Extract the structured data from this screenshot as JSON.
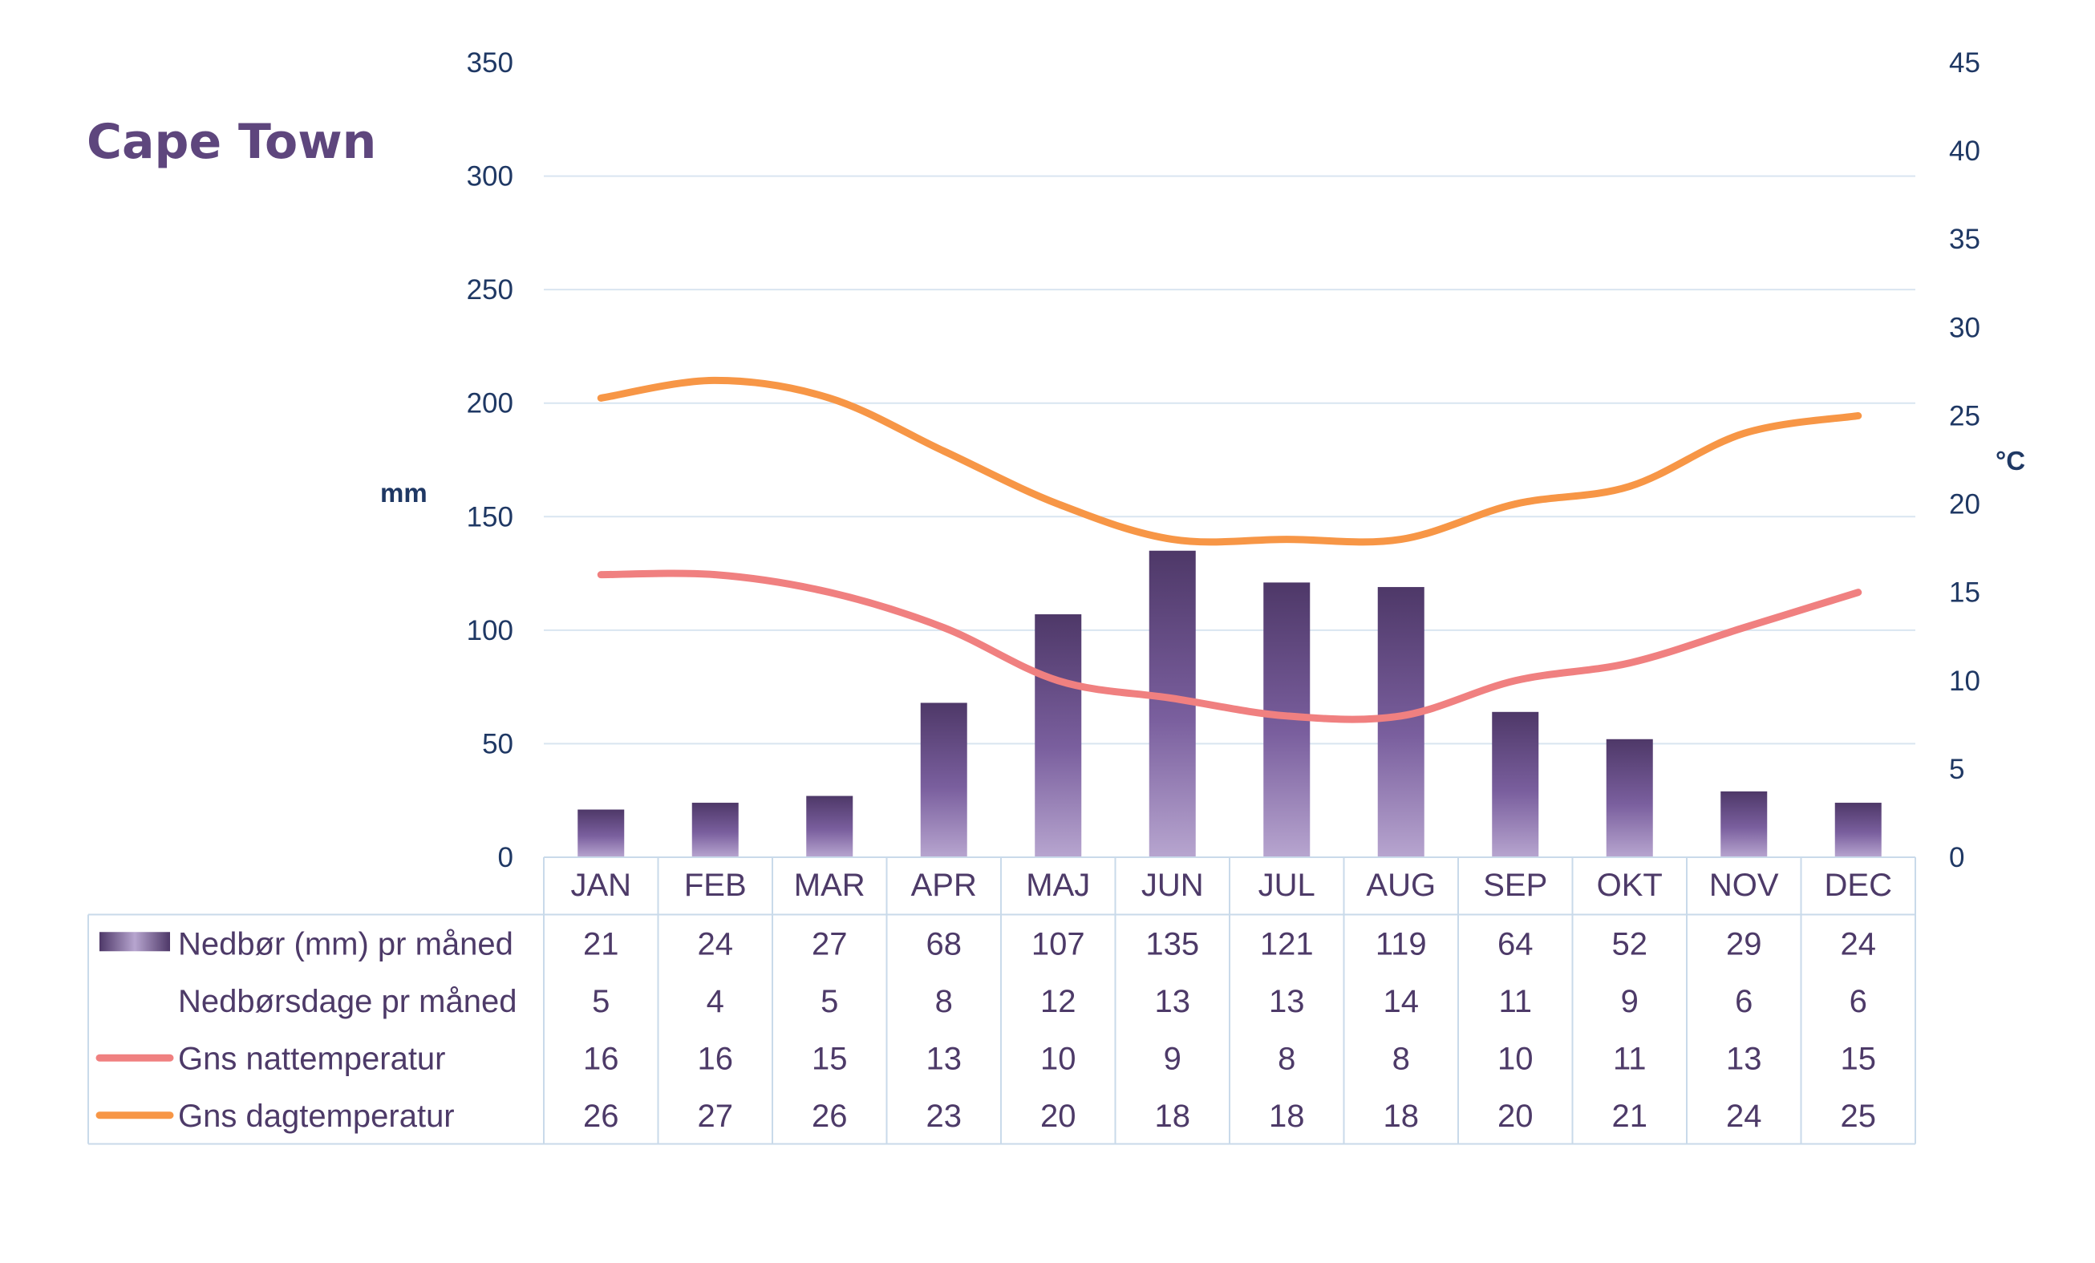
{
  "chart_data": {
    "type": "bar",
    "title": "Cape Town",
    "categories": [
      "JAN",
      "FEB",
      "MAR",
      "APR",
      "MAJ",
      "JUN",
      "JUL",
      "AUG",
      "SEP",
      "OKT",
      "NOV",
      "DEC"
    ],
    "y_left": {
      "label": "mm",
      "min": 0,
      "max": 350,
      "ticks": [
        0,
        50,
        100,
        150,
        200,
        250,
        300,
        350
      ]
    },
    "y_right": {
      "label": "°C",
      "min": 0,
      "max": 45,
      "ticks": [
        0,
        5,
        10,
        15,
        20,
        25,
        30,
        35,
        40,
        45
      ]
    },
    "grid": true,
    "legend": "data table below chart",
    "series": [
      {
        "name": "Nedbør (mm) pr måned",
        "kind": "bar",
        "axis": "left",
        "color": "#5b4378",
        "values": [
          21,
          24,
          27,
          68,
          107,
          135,
          121,
          119,
          64,
          52,
          29,
          24
        ]
      },
      {
        "name": "Nedbørsdage pr måned",
        "kind": "table-only",
        "values": [
          5,
          4,
          5,
          8,
          12,
          13,
          13,
          14,
          11,
          9,
          6,
          6
        ]
      },
      {
        "name": "Gns nattemperatur",
        "kind": "line",
        "axis": "right",
        "color": "#f08080",
        "values": [
          16,
          16,
          15,
          13,
          10,
          9,
          8,
          8,
          10,
          11,
          13,
          15
        ]
      },
      {
        "name": "Gns dagtemperatur",
        "kind": "line",
        "axis": "right",
        "color": "#f79646",
        "values": [
          26,
          27,
          26,
          23,
          20,
          18,
          18,
          18,
          20,
          21,
          24,
          25
        ]
      }
    ]
  }
}
